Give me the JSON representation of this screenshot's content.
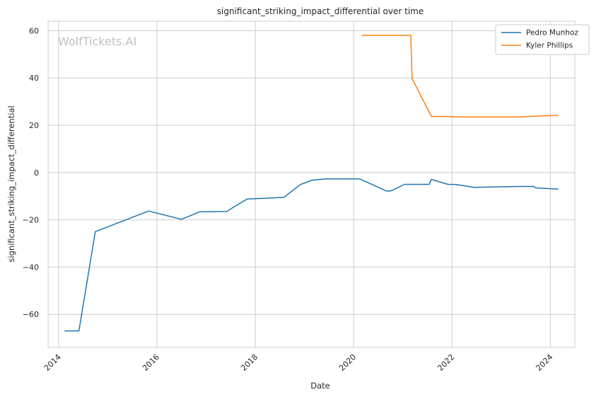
{
  "watermark": "WolfTickets.AI",
  "chart_data": {
    "type": "line",
    "title": "significant_striking_impact_differential over time",
    "xlabel": "Date",
    "ylabel": "significant_striking_impact_differential",
    "x_ticks": [
      "2014",
      "2016",
      "2018",
      "2020",
      "2022",
      "2024"
    ],
    "y_ticks": [
      "60",
      "40",
      "20",
      "0",
      "−20",
      "−40",
      "−60"
    ],
    "xlim": [
      "2013-10-15",
      "2024-07-01"
    ],
    "ylim": [
      -74,
      64
    ],
    "grid": true,
    "legend_position": "top-right",
    "series": [
      {
        "name": "Pedro Munhoz",
        "color": "#1f77b4",
        "points": [
          [
            "2014-02-15",
            -67.0
          ],
          [
            "2014-06-01",
            -67.0
          ],
          [
            "2014-10-01",
            -25.0
          ],
          [
            "2015-11-01",
            -16.3
          ],
          [
            "2016-07-01",
            -19.8
          ],
          [
            "2016-11-15",
            -16.6
          ],
          [
            "2017-06-01",
            -16.5
          ],
          [
            "2017-11-01",
            -11.2
          ],
          [
            "2018-02-01",
            -11.0
          ],
          [
            "2018-08-01",
            -10.5
          ],
          [
            "2018-12-01",
            -5.1
          ],
          [
            "2019-03-01",
            -3.2
          ],
          [
            "2019-06-15",
            -2.7
          ],
          [
            "2020-02-15",
            -2.7
          ],
          [
            "2020-09-01",
            -7.8
          ],
          [
            "2020-10-01",
            -7.8
          ],
          [
            "2021-01-15",
            -5.0
          ],
          [
            "2021-07-15",
            -5.0
          ],
          [
            "2021-08-01",
            -2.9
          ],
          [
            "2021-12-01",
            -5.0
          ],
          [
            "2022-02-01",
            -5.1
          ],
          [
            "2022-06-15",
            -6.3
          ],
          [
            "2023-05-01",
            -5.9
          ],
          [
            "2023-09-01",
            -5.9
          ],
          [
            "2023-09-15",
            -6.5
          ],
          [
            "2024-03-01",
            -7.0
          ]
        ]
      },
      {
        "name": "Kyler Phillips",
        "color": "#ff7f0e",
        "points": [
          [
            "2020-03-01",
            58.0
          ],
          [
            "2021-03-01",
            58.0
          ],
          [
            "2021-03-10",
            39.7
          ],
          [
            "2021-08-01",
            23.7
          ],
          [
            "2021-12-15",
            23.7
          ],
          [
            "2022-03-01",
            23.5
          ],
          [
            "2023-05-01",
            23.5
          ],
          [
            "2023-09-01",
            23.8
          ],
          [
            "2024-03-01",
            24.2
          ]
        ]
      }
    ]
  }
}
